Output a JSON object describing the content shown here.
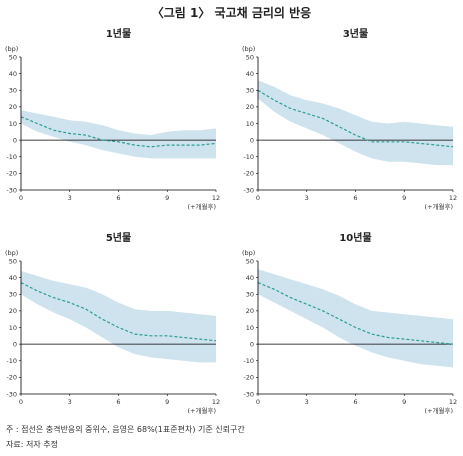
{
  "figure": {
    "title": "〈그림 1〉 국고채 금리의 반응",
    "notes": [
      "주  : 점선은 충격반응의 중위수, 음영은 68%(1표준편차) 기준 신뢰구간",
      "자료: 저자 추정"
    ]
  },
  "colors": {
    "band": "#cfe3ef",
    "median": "#2a9d8f",
    "axis": "#000000",
    "zero": "#000000"
  },
  "chart_data": [
    {
      "type": "line",
      "title": "1년물",
      "ylabel": "(bp)",
      "xlabel": "(+개월후)",
      "xlim": [
        0,
        12
      ],
      "ylim": [
        -30,
        50
      ],
      "xticks": [
        0,
        3,
        6,
        9,
        12
      ],
      "yticks": [
        50,
        40,
        30,
        20,
        10,
        0,
        -10,
        -20,
        -30
      ],
      "x": [
        0,
        1,
        2,
        3,
        4,
        5,
        6,
        7,
        8,
        9,
        10,
        11,
        12
      ],
      "median": [
        14,
        10,
        6,
        4,
        3,
        0,
        -1,
        -3,
        -4,
        -3,
        -3,
        -3,
        -2
      ],
      "upper": [
        18,
        16,
        14,
        12,
        11,
        9,
        6,
        4,
        3,
        5,
        6,
        6,
        7
      ],
      "lower": [
        10,
        5,
        2,
        -1,
        -3,
        -6,
        -8,
        -10,
        -11,
        -11,
        -11,
        -11,
        -11
      ]
    },
    {
      "type": "line",
      "title": "3년물",
      "ylabel": "(bp)",
      "xlabel": "(+개월후)",
      "xlim": [
        0,
        12
      ],
      "ylim": [
        -30,
        50
      ],
      "xticks": [
        0,
        3,
        6,
        9,
        12
      ],
      "yticks": [
        50,
        40,
        30,
        20,
        10,
        0,
        -10,
        -20,
        -30
      ],
      "x": [
        0,
        1,
        2,
        3,
        4,
        5,
        6,
        7,
        8,
        9,
        10,
        11,
        12
      ],
      "median": [
        30,
        24,
        19,
        16,
        13,
        8,
        3,
        -1,
        -1,
        -1,
        -2,
        -3,
        -4
      ],
      "upper": [
        36,
        32,
        27,
        24,
        22,
        19,
        15,
        11,
        10,
        11,
        10,
        9,
        8
      ],
      "lower": [
        25,
        17,
        11,
        7,
        3,
        -2,
        -7,
        -11,
        -13,
        -13,
        -14,
        -15,
        -15
      ]
    },
    {
      "type": "line",
      "title": "5년물",
      "ylabel": "(bp)",
      "xlabel": "(+개월후)",
      "xlim": [
        0,
        12
      ],
      "ylim": [
        -30,
        50
      ],
      "xticks": [
        0,
        3,
        6,
        9,
        12
      ],
      "yticks": [
        50,
        40,
        30,
        20,
        10,
        0,
        -10,
        -20,
        -30
      ],
      "x": [
        0,
        1,
        2,
        3,
        4,
        5,
        6,
        7,
        8,
        9,
        10,
        11,
        12
      ],
      "median": [
        37,
        32,
        28,
        25,
        21,
        15,
        10,
        6,
        5,
        5,
        4,
        3,
        2
      ],
      "upper": [
        44,
        41,
        38,
        36,
        34,
        30,
        25,
        21,
        20,
        20,
        19,
        18,
        17
      ],
      "lower": [
        30,
        24,
        19,
        15,
        10,
        4,
        -2,
        -6,
        -8,
        -9,
        -10,
        -11,
        -11
      ]
    },
    {
      "type": "line",
      "title": "10년물",
      "ylabel": "(bp)",
      "xlabel": "(+개월후)",
      "xlim": [
        0,
        12
      ],
      "ylim": [
        -30,
        50
      ],
      "xticks": [
        0,
        3,
        6,
        9,
        12
      ],
      "yticks": [
        50,
        40,
        30,
        20,
        10,
        0,
        -10,
        -20,
        -30
      ],
      "x": [
        0,
        1,
        2,
        3,
        4,
        5,
        6,
        7,
        8,
        9,
        10,
        11,
        12
      ],
      "median": [
        37,
        33,
        28,
        24,
        20,
        15,
        10,
        6,
        4,
        3,
        2,
        1,
        0
      ],
      "upper": [
        45,
        42,
        39,
        36,
        33,
        29,
        24,
        20,
        19,
        18,
        17,
        16,
        15
      ],
      "lower": [
        30,
        25,
        20,
        15,
        10,
        4,
        -1,
        -5,
        -8,
        -10,
        -12,
        -13,
        -14
      ]
    }
  ]
}
